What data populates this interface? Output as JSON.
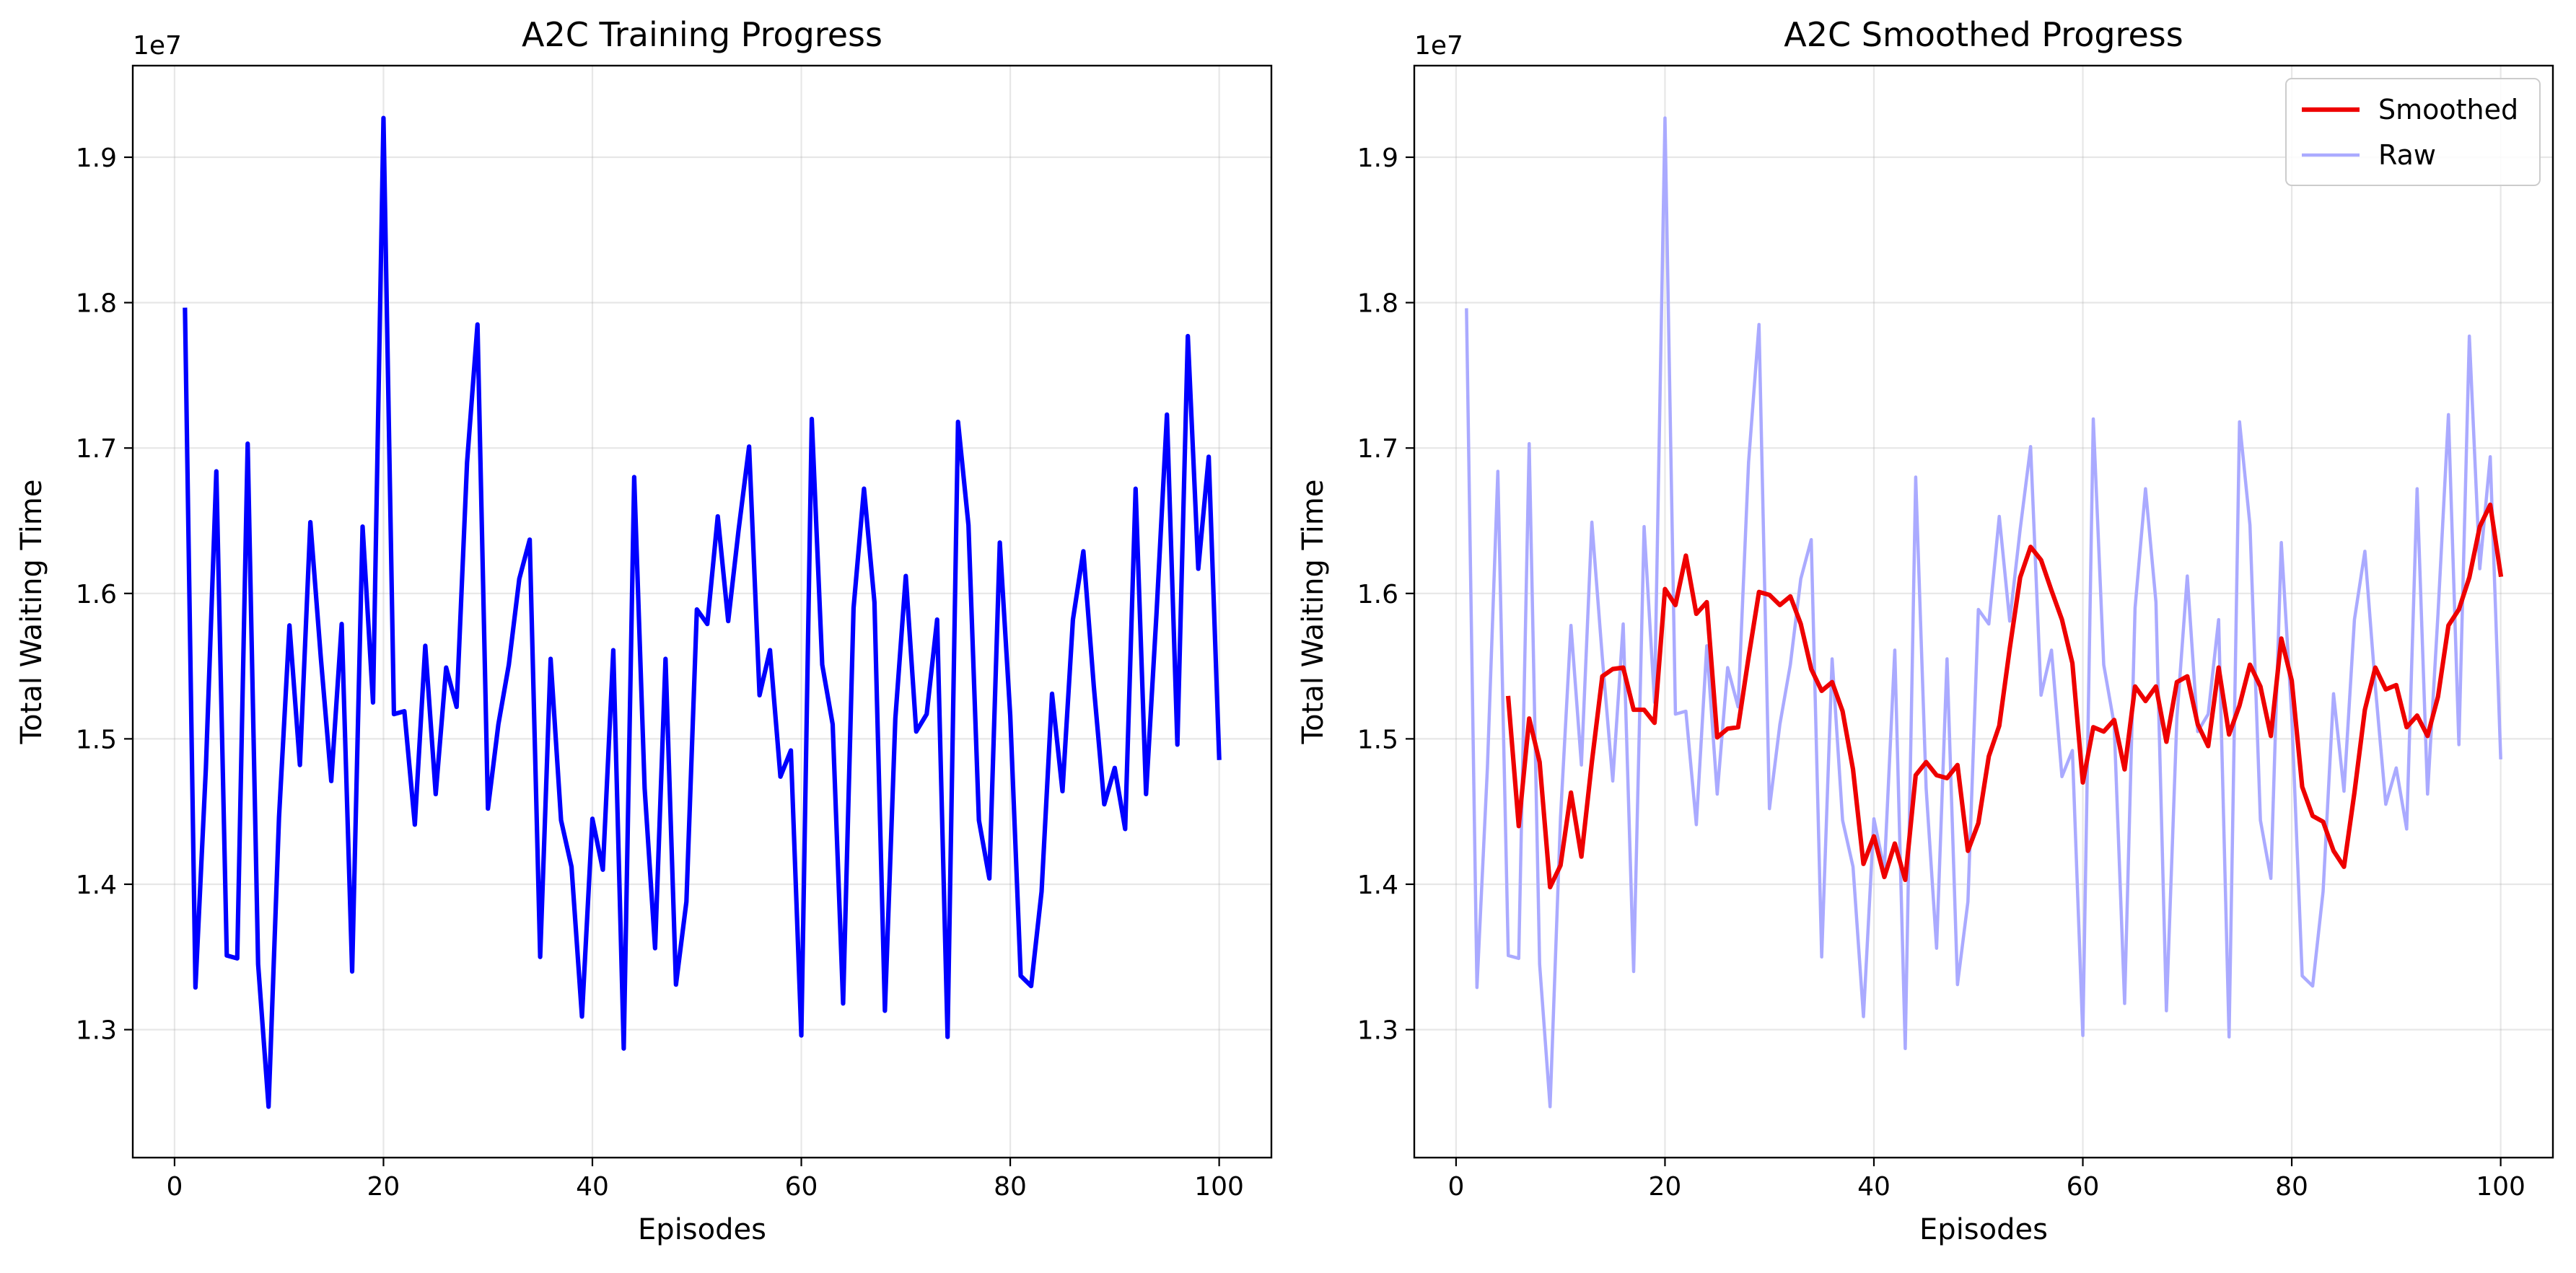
{
  "chart_data": [
    {
      "type": "line",
      "title": "A2C Training Progress",
      "xlabel": "Episodes",
      "ylabel": "Total Waiting Time",
      "y_offset_label": "1e7",
      "xlim": [
        -4,
        105
      ],
      "ylim": [
        1.212,
        1.963
      ],
      "xticks": [
        0,
        20,
        40,
        60,
        80,
        100
      ],
      "yticks": [
        1.3,
        1.4,
        1.5,
        1.6,
        1.7,
        1.8,
        1.9
      ],
      "grid": true,
      "series": [
        {
          "color": "#0000ff",
          "values": [
            1.795,
            1.329,
            1.48,
            1.684,
            1.351,
            1.349,
            1.703,
            1.345,
            1.247,
            1.446,
            1.578,
            1.482,
            1.649,
            1.556,
            1.471,
            1.579,
            1.34,
            1.646,
            1.525,
            1.927,
            1.517,
            1.519,
            1.441,
            1.564,
            1.462,
            1.549,
            1.522,
            1.69,
            1.785,
            1.452,
            1.51,
            1.551,
            1.61,
            1.637,
            1.35,
            1.555,
            1.444,
            1.412,
            1.309,
            1.445,
            1.41,
            1.561,
            1.287,
            1.68,
            1.466,
            1.356,
            1.555,
            1.331,
            1.388,
            1.589,
            1.579,
            1.653,
            1.581,
            1.644,
            1.701,
            1.53,
            1.561,
            1.474,
            1.492,
            1.296,
            1.72,
            1.551,
            1.51,
            1.318,
            1.59,
            1.672,
            1.594,
            1.313,
            1.514,
            1.612,
            1.505,
            1.517,
            1.582,
            1.295,
            1.718,
            1.647,
            1.444,
            1.404,
            1.635,
            1.516,
            1.337,
            1.33,
            1.395,
            1.531,
            1.464,
            1.582,
            1.629,
            1.536,
            1.455,
            1.48,
            1.438,
            1.672,
            1.462,
            1.586,
            1.723,
            1.496,
            1.777,
            1.617,
            1.694,
            1.487
          ]
        }
      ]
    },
    {
      "type": "line",
      "title": "A2C Smoothed Progress",
      "xlabel": "Episodes",
      "ylabel": "Total Waiting Time",
      "y_offset_label": "1e7",
      "xlim": [
        -4,
        105
      ],
      "ylim": [
        1.212,
        1.963
      ],
      "xticks": [
        0,
        20,
        40,
        60,
        80,
        100
      ],
      "yticks": [
        1.3,
        1.4,
        1.5,
        1.6,
        1.7,
        1.8,
        1.9
      ],
      "grid": true,
      "legend_position": "top-right",
      "series": [
        {
          "name": "Smoothed",
          "color": "#ee0000",
          "x_start": 5,
          "values": [
            1.528,
            1.44,
            1.514,
            1.484,
            1.398,
            1.413,
            1.463,
            1.419,
            1.484,
            1.543,
            1.548,
            1.549,
            1.52,
            1.52,
            1.511,
            1.603,
            1.592,
            1.626,
            1.586,
            1.594,
            1.501,
            1.507,
            1.508,
            1.556,
            1.601,
            1.599,
            1.592,
            1.598,
            1.579,
            1.548,
            1.533,
            1.539,
            1.519,
            1.479,
            1.414,
            1.433,
            1.405,
            1.428,
            1.403,
            1.475,
            1.484,
            1.475,
            1.473,
            1.482,
            1.423,
            1.442,
            1.488,
            1.509,
            1.562,
            1.611,
            1.632,
            1.623,
            1.602,
            1.582,
            1.552,
            1.47,
            1.508,
            1.505,
            1.513,
            1.479,
            1.536,
            1.526,
            1.536,
            1.498,
            1.539,
            1.543,
            1.51,
            1.495,
            1.549,
            1.503,
            1.523,
            1.551,
            1.536,
            1.502,
            1.569,
            1.54,
            1.467,
            1.447,
            1.443,
            1.423,
            1.412,
            1.463,
            1.52,
            1.549,
            1.534,
            1.537,
            1.508,
            1.516,
            1.502,
            1.529,
            1.578,
            1.589,
            1.611,
            1.646,
            1.661,
            1.613
          ]
        },
        {
          "name": "Raw",
          "color": "#aaaaff",
          "x_start": 1,
          "values": [
            1.795,
            1.329,
            1.48,
            1.684,
            1.351,
            1.349,
            1.703,
            1.345,
            1.247,
            1.446,
            1.578,
            1.482,
            1.649,
            1.556,
            1.471,
            1.579,
            1.34,
            1.646,
            1.525,
            1.927,
            1.517,
            1.519,
            1.441,
            1.564,
            1.462,
            1.549,
            1.522,
            1.69,
            1.785,
            1.452,
            1.51,
            1.551,
            1.61,
            1.637,
            1.35,
            1.555,
            1.444,
            1.412,
            1.309,
            1.445,
            1.41,
            1.561,
            1.287,
            1.68,
            1.466,
            1.356,
            1.555,
            1.331,
            1.388,
            1.589,
            1.579,
            1.653,
            1.581,
            1.644,
            1.701,
            1.53,
            1.561,
            1.474,
            1.492,
            1.296,
            1.72,
            1.551,
            1.51,
            1.318,
            1.59,
            1.672,
            1.594,
            1.313,
            1.514,
            1.612,
            1.505,
            1.517,
            1.582,
            1.295,
            1.718,
            1.647,
            1.444,
            1.404,
            1.635,
            1.516,
            1.337,
            1.33,
            1.395,
            1.531,
            1.464,
            1.582,
            1.629,
            1.536,
            1.455,
            1.48,
            1.438,
            1.672,
            1.462,
            1.586,
            1.723,
            1.496,
            1.777,
            1.617,
            1.694,
            1.487
          ]
        }
      ]
    }
  ]
}
